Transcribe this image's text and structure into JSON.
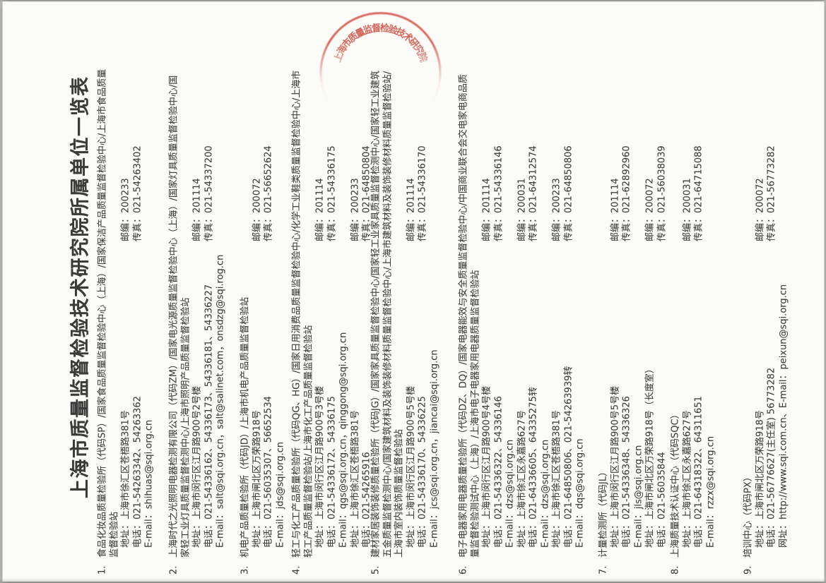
{
  "document": {
    "title": "上海市质量监督检验技术研究院所属单位一览表",
    "stamp_text": "上海市质量监督检验技术研究院",
    "labels": {
      "addr": "地址：",
      "post": "邮编：",
      "tel": "电话：",
      "fax": "传真：",
      "email": "E-mail：",
      "web": "网址：",
      "sep": "、"
    },
    "items": [
      {
        "num": "1.",
        "name": "食品化妆品质量检验所（代码SP）/国家食品质量监督检验中心（上海）/国家保洁产品质量监督检验中心/上海市食品质量监督检验站",
        "contacts": [
          {
            "addr": "上海市徐汇区苍梧路381号",
            "post": "200233",
            "tel": "021-54263342、54263362",
            "fax": "021-54263402",
            "email": "shihuas@sqi.org.cn"
          }
        ]
      },
      {
        "num": "2.",
        "name": "上海时代之光照明电器检测有限公司（代码ZM）/国家电光源质量监督检验中心（上海）/国家灯具质量监督检验中心/国家轻工业灯具质量监督检测中心/上海市照明产品质量监督检验站",
        "contacts": [
          {
            "addr": "上海市闵行区江月路900号2号楼",
            "post": "201114",
            "tel": "021-54336162、54336173、54336181、54336227",
            "fax": "021-54337200",
            "email": "salt@sqi.org.cn，salt@salinet.com，onsdzg@sqi.rog.cn"
          }
        ]
      },
      {
        "num": "3.",
        "name": "机电产品质量检验所（代码JD）/上海市机电产品质量监督检验站",
        "contacts": [
          {
            "addr": "上海市闸北区万荣路918号",
            "post": "200072",
            "tel": "021-56035307、56652534",
            "fax": "021-56652624",
            "email": "jds@sqi.org.cn"
          }
        ]
      },
      {
        "num": "4.",
        "name": "轻工与化工产品质量检验所（代码QG、HG）/国家日用消费品质量监督检验中心/化学工业鞋类质量监督检验中心/上海市轻工产品质量监督检验站/上海市化工产品质量监督检验站",
        "contacts": [
          {
            "addr": "上海市闵行区江月路900号3号楼",
            "post": "201114",
            "tel": "021-54336172、54336175",
            "fax": "021-54336175",
            "email": "qgs@sqi.org.cn，qinggong@sqi.org.cn"
          },
          {
            "addr": "上海市徐汇区苍梧路381号",
            "post": "200233",
            "tel": "021-54265916",
            "fax": "021-64850804"
          }
        ]
      },
      {
        "num": "5.",
        "name": "建材家居装饰装修质量检验所（代码JG）/国家家具质量监督检验中心/国家轻工业家具质量监督检测中心/国家轻工业建筑五金质量监督检测中心/国家建筑材料及装饰装修材料质量监督检验中心/上海市建筑材料及装饰装修材料质量监督检验站/上海市室内装饰质量监督检验站",
        "contacts": [
          {
            "addr": "上海市闵行区江月路900号5号楼",
            "post": "201114",
            "tel": "021-54336170、54336225",
            "fax": "021-54336170",
            "email": "jcs@sqi.org.cn，jiancai@sqi.org.cn"
          }
        ]
      },
      {
        "num": "6.",
        "name": "电子电器家用电器质量检验所（代码DZ、DQ）/国家电器能效与安全质量监督检验中心/中国商业联合会交电家电商品质量监督检验测试中心（上海）/上海市电子电器家用电器质量监督检验站",
        "contacts": [
          {
            "addr": "上海市闵行区江月路900号4号楼",
            "post": "201114",
            "tel": "021-54336322、54336146",
            "fax": "021-54336146",
            "email": "dzs@sqi.org.cn"
          },
          {
            "addr": "上海市徐汇区永嘉路627号",
            "post": "200031",
            "tel": "021-64336605、64335275转",
            "fax": "021-64312574",
            "email": "dzs@sqi.org.cn"
          },
          {
            "addr": "上海市徐汇区苍梧路381号",
            "post": "200233",
            "tel": "021-64850806、021-54263939转",
            "fax": "021-64850806",
            "email": "dqs@sqi.org.cn"
          }
        ]
      },
      {
        "num": "7.",
        "name": "计量检测所（代码JL）",
        "contacts": [
          {
            "addr": "上海市闵行区江月路900号5号楼",
            "post": "201114",
            "tel": "021-54336348、54336326",
            "fax": "021-62892960",
            "email": "jls@sqi.org.cn"
          },
          {
            "addr": "上海市闸北区万荣路918号（长度室）",
            "post": "200072",
            "tel": "021-56035844",
            "fax": "021-56038039"
          }
        ]
      },
      {
        "num": "8.",
        "name": "上海质量技术认证中心（代码SQC）",
        "contacts": [
          {
            "addr": "上海市徐汇区永嘉路627号",
            "post": "200031",
            "tel": "021-64318322、64311651",
            "fax": "021-64715088",
            "email": "rzzx@sqi.org.cn"
          }
        ]
      },
      {
        "num": "9.",
        "name": "培训中心（代码PX）",
        "contacts": [
          {
            "addr": "上海市闸北区万荣路918号",
            "post": "200072",
            "tel": "021-56776627(主任室) 56773282",
            "fax": "021-56773282",
            "web": "http://www.sqi.com.cn",
            "email": "peixun@sqi.org.cn"
          }
        ]
      }
    ]
  },
  "colors": {
    "stamp_red": "#c7362a",
    "ink": "#3e3e3e",
    "paper": "#fbfbf8"
  }
}
